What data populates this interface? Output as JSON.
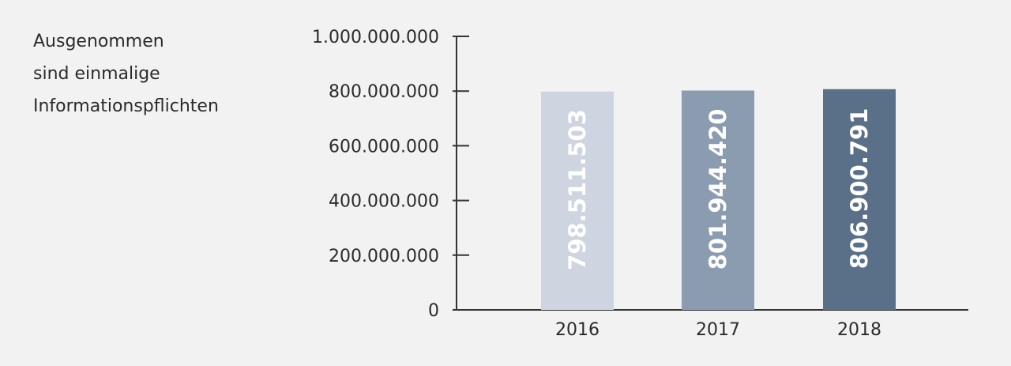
{
  "note": {
    "lines": [
      "Ausgenommen",
      "sind einmalige",
      "Informationspflichten"
    ]
  },
  "chart_data": {
    "type": "bar",
    "title": "",
    "xlabel": "",
    "ylabel": "",
    "categories": [
      "2016",
      "2017",
      "2018"
    ],
    "values": [
      798511503,
      801944420,
      806900791
    ],
    "value_labels": [
      "798.511.503",
      "801.944.420",
      "806.900.791"
    ],
    "bar_colors": [
      "#ced5e0",
      "#8b9bb0",
      "#5a6f88"
    ],
    "ylim": [
      0,
      1000000000
    ],
    "yticks": [
      0,
      200000000,
      400000000,
      600000000,
      800000000,
      1000000000
    ],
    "ytick_labels": [
      "0",
      "200.000.000",
      "400.000.000",
      "600.000.000",
      "800.000.000",
      "1.000.000.000"
    ],
    "grid": false,
    "legend": "none"
  }
}
